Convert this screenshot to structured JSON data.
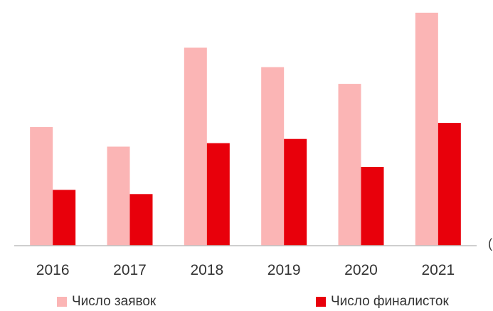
{
  "chart_data": {
    "type": "bar",
    "categories": [
      "2016",
      "2017",
      "2018",
      "2019",
      "2020",
      "2021"
    ],
    "series": [
      {
        "name": "Число заявок",
        "color": "#fbb5b5",
        "values": [
          170,
          142,
          284,
          256,
          232,
          334
        ]
      },
      {
        "name": "Число финалисток",
        "color": "#e8000b",
        "values": [
          80,
          74,
          147,
          153,
          113,
          176
        ]
      }
    ],
    "title": "",
    "xlabel": "",
    "ylabel": "",
    "ylim": [
      0,
      340
    ],
    "grid": false,
    "legend": "bottom"
  },
  "edge_text": "("
}
